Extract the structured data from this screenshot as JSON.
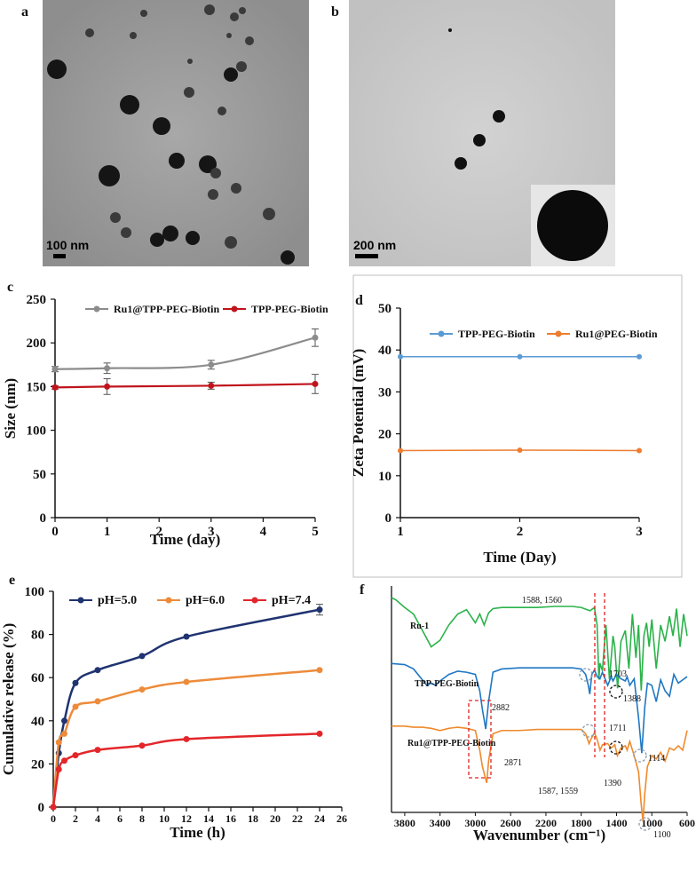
{
  "panels": {
    "a": {
      "label": "a",
      "scale_bar": "100 nm"
    },
    "b": {
      "label": "b",
      "scale_bar": "200 nm"
    }
  },
  "chart_data": [
    {
      "id": "c",
      "panel_label": "c",
      "type": "line",
      "xlabel": "Time (day)",
      "ylabel": "Size (nm)",
      "xlim": [
        0,
        5
      ],
      "ylim": [
        0,
        250
      ],
      "xticks": [
        "0",
        "1",
        "2",
        "3",
        "4",
        "5"
      ],
      "yticks": [
        "0",
        "50",
        "100",
        "150",
        "200",
        "250"
      ],
      "legend_position": "top",
      "series": [
        {
          "name": "Ru1@TPP-PEG-Biotin",
          "color": "#8c8c8c",
          "x": [
            0,
            1,
            3,
            5
          ],
          "y": [
            170,
            171,
            175,
            206
          ],
          "err": [
            3,
            6,
            5,
            10
          ]
        },
        {
          "name": "TPP-PEG-Biotin",
          "color": "#c0141c",
          "x": [
            0,
            1,
            3,
            5
          ],
          "y": [
            149,
            150,
            151,
            153
          ],
          "err": [
            2,
            9,
            4,
            11
          ]
        }
      ]
    },
    {
      "id": "d",
      "panel_label": "d",
      "type": "line",
      "xlabel": "Time (Day)",
      "ylabel": "Zeta Potential (mV)",
      "xlim": [
        1,
        3
      ],
      "ylim": [
        0,
        50
      ],
      "xticks": [
        "1",
        "2",
        "3"
      ],
      "yticks": [
        "0",
        "10",
        "20",
        "30",
        "40",
        "50"
      ],
      "legend_position": "top",
      "series": [
        {
          "name": "TPP-PEG-Biotin",
          "color": "#5b9bd5",
          "x": [
            1,
            2,
            3
          ],
          "y": [
            38.4,
            38.4,
            38.4
          ]
        },
        {
          "name": "Ru1@PEG-Biotin",
          "color": "#ed7d31",
          "x": [
            1,
            2,
            3
          ],
          "y": [
            16.0,
            16.1,
            16.0
          ]
        }
      ]
    },
    {
      "id": "e",
      "panel_label": "e",
      "type": "line",
      "xlabel": "Time (h)",
      "ylabel": "Cumulative release (%)",
      "xlim": [
        0,
        26
      ],
      "ylim": [
        0,
        100
      ],
      "xticks": [
        "0",
        "2",
        "4",
        "6",
        "8",
        "10",
        "12",
        "14",
        "16",
        "18",
        "20",
        "22",
        "24",
        "26"
      ],
      "yticks": [
        "0",
        "20",
        "40",
        "60",
        "80",
        "100"
      ],
      "legend_position": "top-left",
      "series": [
        {
          "name": "pH=5.0",
          "color": "#1f3370",
          "x": [
            0,
            0.5,
            1,
            2,
            4,
            8,
            12,
            24
          ],
          "y": [
            0,
            25,
            40,
            57.5,
            63.5,
            70,
            79,
            91.5
          ],
          "err": [
            0,
            0,
            0,
            0,
            0,
            0,
            0,
            2.5
          ]
        },
        {
          "name": "pH=6.0",
          "color": "#ed8b3a",
          "x": [
            0,
            0.5,
            1,
            2,
            4,
            8,
            12,
            24
          ],
          "y": [
            0,
            30,
            34,
            46.5,
            49,
            54.5,
            58,
            63.5
          ]
        },
        {
          "name": "pH=7.4",
          "color": "#e3262a",
          "x": [
            0,
            0.5,
            1,
            2,
            4,
            8,
            12,
            24
          ],
          "y": [
            0,
            17.5,
            21.5,
            24,
            26.5,
            28.5,
            31.5,
            34
          ]
        }
      ]
    },
    {
      "id": "f",
      "panel_label": "f",
      "type": "line",
      "xlabel": "Wavenumber (cm⁻¹)",
      "xlim": [
        3950,
        600
      ],
      "xticks": [
        "3800",
        "3400",
        "3000",
        "2600",
        "2200",
        "1800",
        "1400",
        "1000",
        "600"
      ],
      "series": [
        {
          "name": "Ru-1",
          "color": "#2bb34a",
          "x": [
            3950,
            3900,
            3800,
            3700,
            3600,
            3500,
            3400,
            3300,
            3200,
            3100,
            3000,
            2950,
            2900,
            2850,
            2800,
            2700,
            2500,
            2300,
            2100,
            2000,
            1900,
            1800,
            1700,
            1650,
            1620,
            1600,
            1588,
            1560,
            1520,
            1480,
            1440,
            1420,
            1388,
            1350,
            1300,
            1260,
            1220,
            1180,
            1150,
            1120,
            1090,
            1060,
            1030,
            1000,
            950,
            900,
            850,
            800,
            760,
            720,
            680,
            640,
            600
          ],
          "y": [
            95,
            93,
            86,
            80,
            65,
            50,
            56,
            70,
            80,
            84,
            72,
            80,
            70,
            81,
            85,
            86,
            86,
            86,
            87,
            87,
            87,
            86,
            83,
            86,
            70,
            20,
            35,
            28,
            70,
            20,
            60,
            50,
            12,
            55,
            65,
            30,
            80,
            40,
            70,
            10,
            60,
            72,
            50,
            75,
            30,
            70,
            55,
            78,
            60,
            85,
            50,
            80,
            60
          ]
        },
        {
          "name": "TPP-PEG-Biotin",
          "color": "#1f77c4",
          "x": [
            3950,
            3800,
            3700,
            3600,
            3550,
            3500,
            3450,
            3400,
            3300,
            3200,
            3100,
            3000,
            2950,
            2920,
            2882,
            2850,
            2800,
            2700,
            2500,
            2300,
            2100,
            2000,
            1900,
            1800,
            1750,
            1720,
            1703,
            1680,
            1650,
            1620,
            1588,
            1560,
            1500,
            1460,
            1440,
            1400,
            1350,
            1300,
            1280,
            1250,
            1200,
            1150,
            1114,
            1080,
            1050,
            1000,
            950,
            900,
            850,
            800,
            750,
            700,
            650,
            600
          ],
          "y": [
            90,
            89,
            85,
            75,
            70,
            72,
            70,
            74,
            80,
            83,
            82,
            80,
            65,
            48,
            30,
            55,
            82,
            85,
            86,
            86,
            86,
            86,
            86,
            85,
            80,
            70,
            62,
            80,
            84,
            78,
            76,
            82,
            70,
            78,
            74,
            80,
            76,
            74,
            78,
            70,
            76,
            40,
            8,
            50,
            72,
            70,
            55,
            75,
            65,
            60,
            80,
            72,
            75,
            78
          ]
        },
        {
          "name": "Ru1@TPP-PEG-Biotin",
          "color": "#ef8a2c",
          "x": [
            3950,
            3800,
            3700,
            3600,
            3500,
            3400,
            3300,
            3200,
            3100,
            3000,
            2950,
            2920,
            2871,
            2850,
            2800,
            2700,
            2500,
            2300,
            2100,
            2000,
            1900,
            1800,
            1750,
            1711,
            1690,
            1650,
            1620,
            1587,
            1559,
            1500,
            1460,
            1420,
            1390,
            1350,
            1300,
            1280,
            1250,
            1200,
            1150,
            1120,
            1100,
            1080,
            1050,
            1000,
            950,
            900,
            850,
            800,
            750,
            700,
            650,
            600
          ],
          "y": [
            92,
            92,
            91,
            91,
            90,
            88,
            90,
            91,
            90,
            88,
            70,
            55,
            40,
            60,
            85,
            88,
            88,
            89,
            89,
            89,
            89,
            89,
            85,
            76,
            80,
            86,
            80,
            70,
            75,
            76,
            72,
            75,
            65,
            72,
            74,
            70,
            78,
            65,
            50,
            20,
            5,
            30,
            55,
            65,
            62,
            68,
            60,
            72,
            70,
            74,
            70,
            88
          ]
        }
      ],
      "labels": [
        "Ru-1",
        "TPP-PEG-Biotin",
        "Ru1@TPP-PEG-Biotin"
      ],
      "annotations": [
        "1588, 1560",
        "1388",
        "2882",
        "1703",
        "1114",
        "1711",
        "2871",
        "1587, 1559",
        "1390",
        "1100"
      ]
    }
  ]
}
